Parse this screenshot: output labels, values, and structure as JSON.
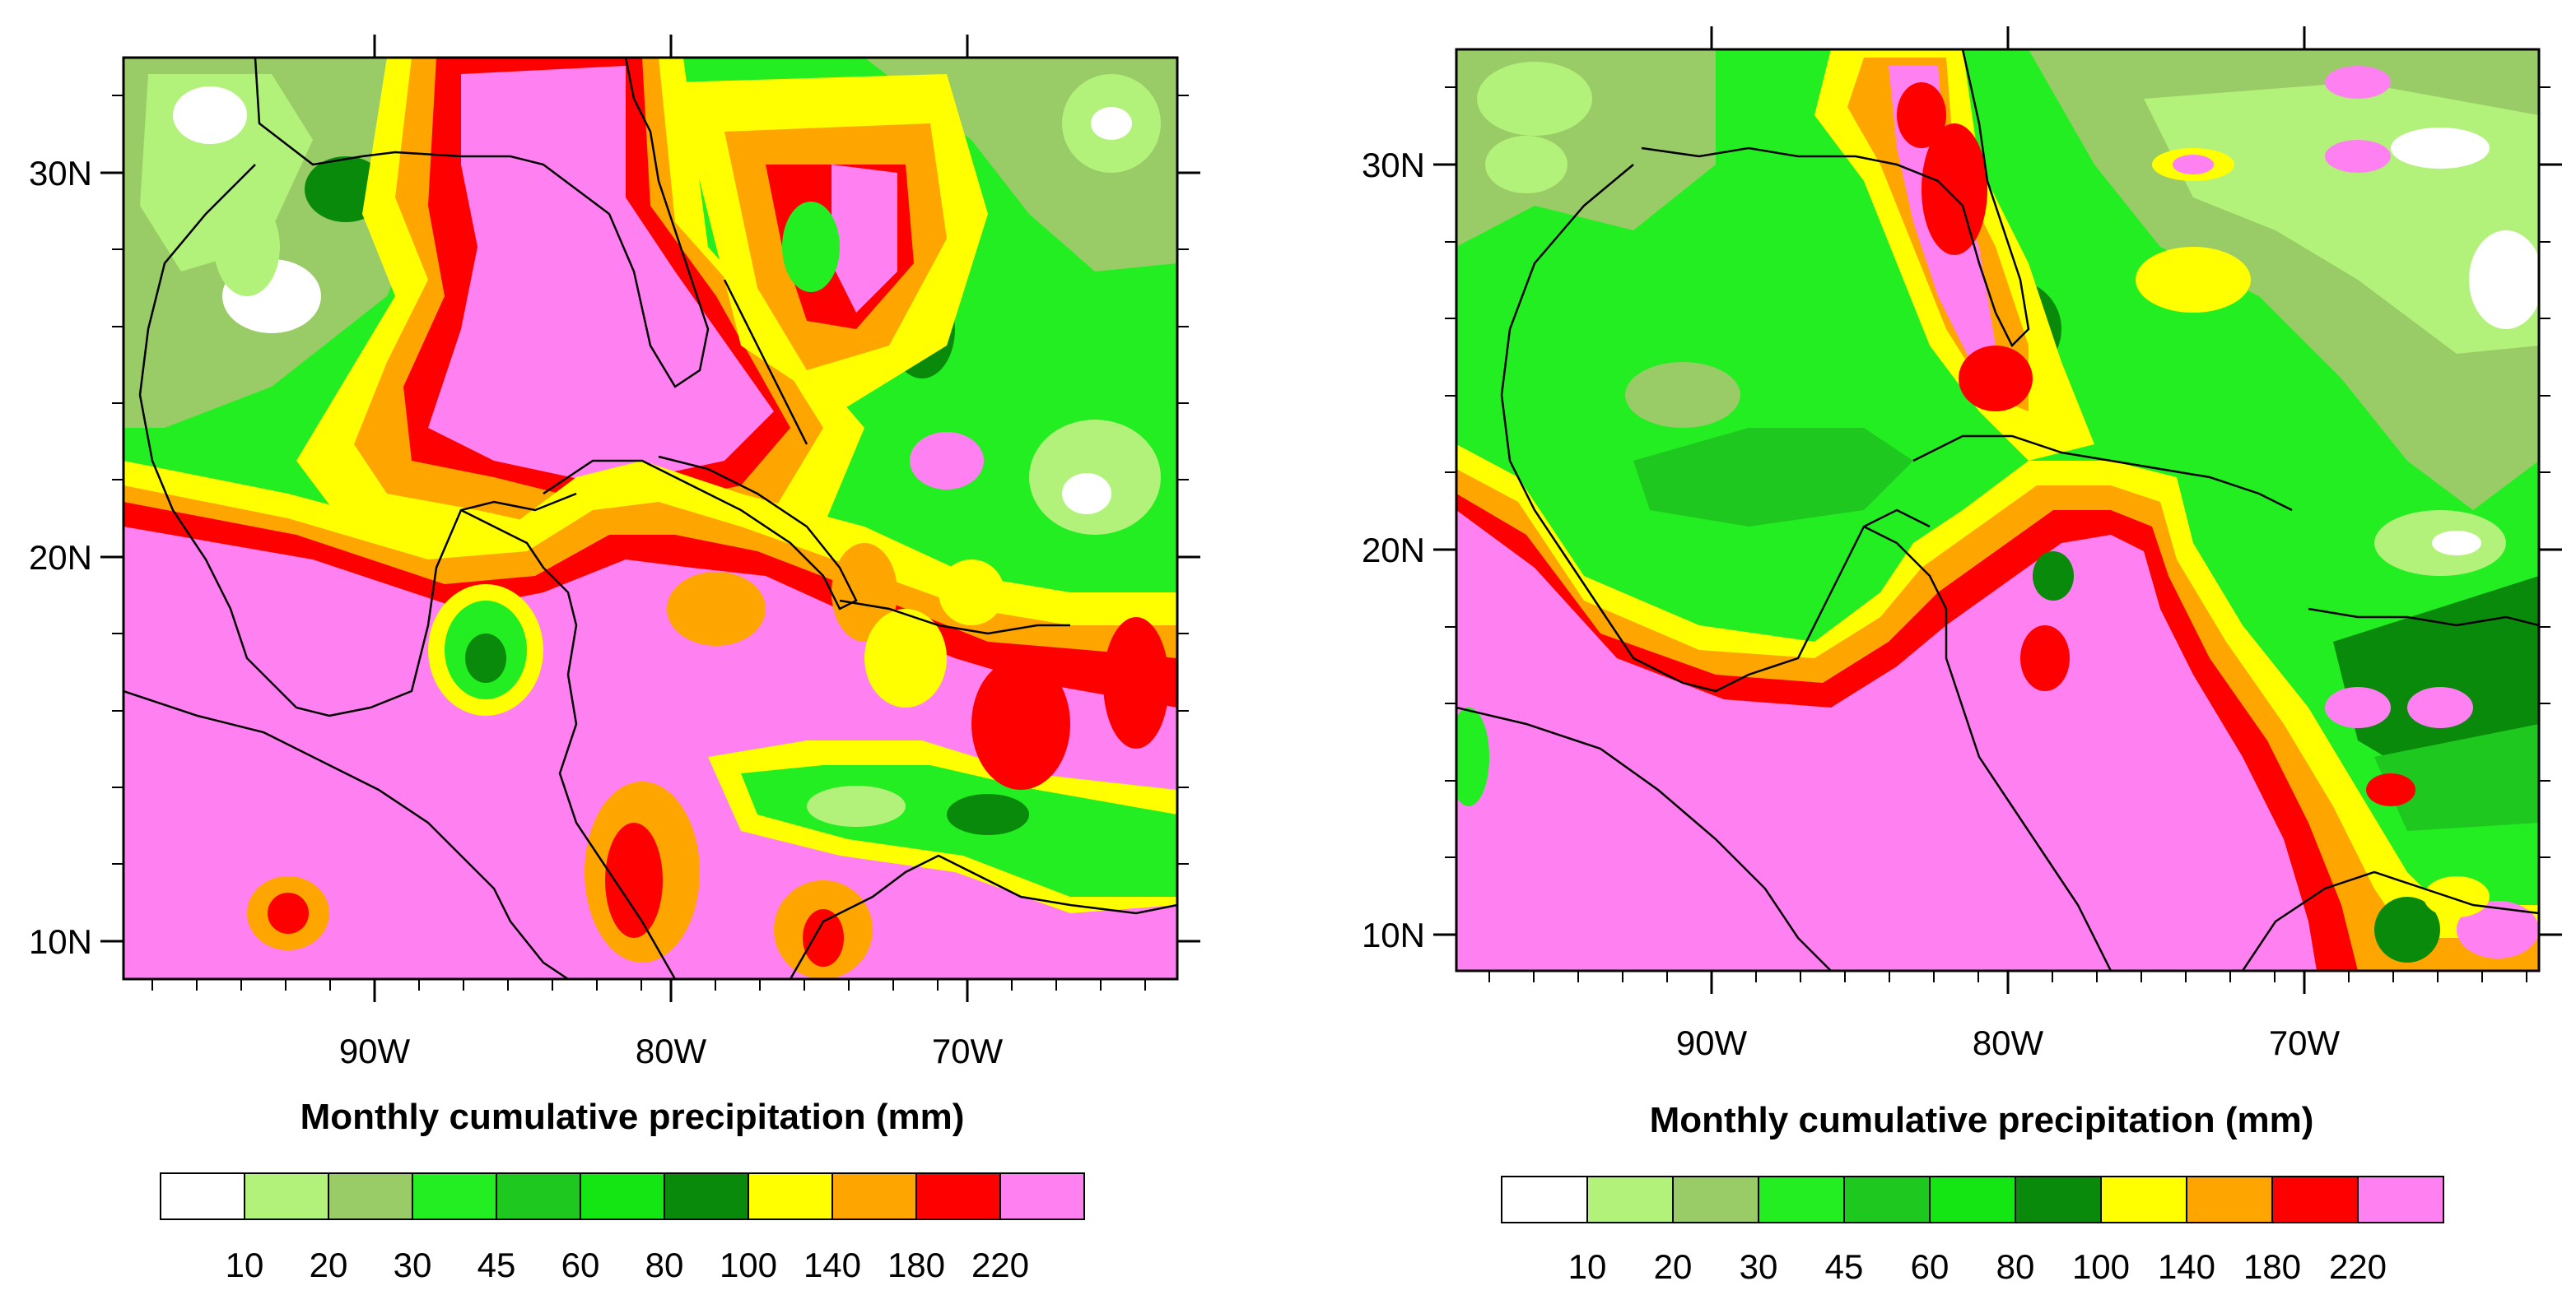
{
  "palette": {
    "white": "#ffffff",
    "lightgreen": "#b3f27a",
    "olivegreen": "#99cc66",
    "brightgreen": "#22ee22",
    "midgreen": "#1ec81e",
    "green": "#14e614",
    "darkgreen": "#0a8a0a",
    "yellow": "#ffff00",
    "orange": "#ffa500",
    "red": "#ff0000",
    "pink": "#ff80f0"
  },
  "panels": [
    {
      "id": "left",
      "x_tick_labels": [
        "90W",
        "80W",
        "70W"
      ],
      "y_tick_labels": [
        "30N",
        "20N",
        "10N"
      ],
      "xlabel": "Monthly cumulative precipitation (mm)",
      "legend": {
        "colors": [
          "#ffffff",
          "#b3f27a",
          "#99cc66",
          "#22ee22",
          "#1ec81e",
          "#14e614",
          "#0a8a0a",
          "#ffff00",
          "#ffa500",
          "#ff0000",
          "#ff80f0"
        ],
        "tick_labels": [
          "10",
          "20",
          "30",
          "45",
          "60",
          "80",
          "100",
          "140",
          "180",
          "220"
        ]
      }
    },
    {
      "id": "right",
      "x_tick_labels": [
        "90W",
        "80W",
        "70W"
      ],
      "y_tick_labels": [
        "30N",
        "20N",
        "10N"
      ],
      "xlabel": "Monthly cumulative precipitation (mm)",
      "legend": {
        "colors": [
          "#ffffff",
          "#b3f27a",
          "#99cc66",
          "#22ee22",
          "#1ec81e",
          "#14e614",
          "#0a8a0a",
          "#ffff00",
          "#ffa500",
          "#ff0000",
          "#ff80f0"
        ],
        "tick_labels": [
          "10",
          "20",
          "30",
          "45",
          "60",
          "80",
          "100",
          "140",
          "180",
          "220"
        ]
      }
    }
  ]
}
